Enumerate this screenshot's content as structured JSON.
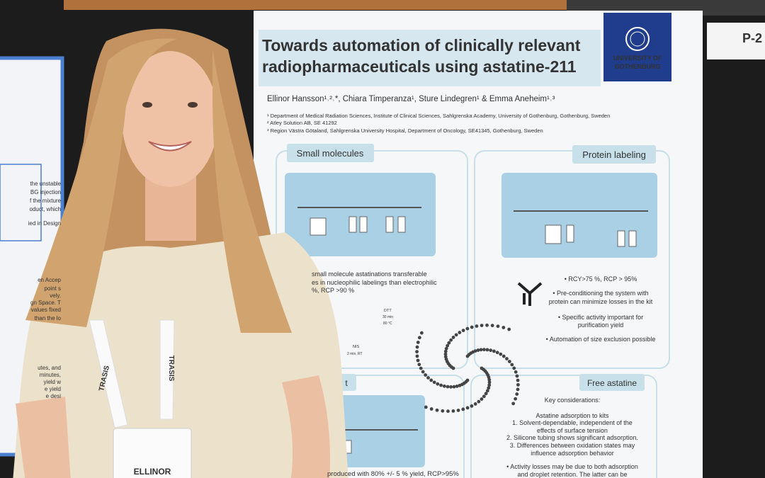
{
  "left_poster": {
    "lines": [
      "the unstable",
      "BG injection",
      "f the mixture",
      "oduct, which",
      "ied in Design",
      "en Accep",
      "point s",
      "vely.",
      "gn Space. T",
      "values fixed",
      "than the lo",
      "utes, and",
      "minutes,",
      "yield w",
      "e yield",
      "e desi"
    ]
  },
  "poster": {
    "title": [
      "Towards automation of clinically relevant",
      "radiopharmaceuticals using astatine-211"
    ],
    "university": [
      "UNIVERSITY OF",
      "GOTHENBURG"
    ],
    "authors": "Ellinor Hansson¹˒²˒*, Chiara Timperanza¹, Sture Lindegren¹ & Emma Aneheim¹˒³",
    "affiliations": [
      "¹ Department of Medical Radiation Sciences, Institute of Clinical Sciences, Sahlgrenska Academy, University of Gothenburg, Gothenburg, Sweden",
      "² Atley Solution AB, SE 41292",
      "³ Region Västra Götaland, Sahlgrenska University Hospital, Department of Oncology, SE41345, Gothenburg, Sweden"
    ],
    "small_molecules": {
      "heading": "Small molecules",
      "text": [
        "small molecule astatinations transferable",
        "es in nucleophilic labelings than electrophilic",
        "%, RCP >90 %"
      ]
    },
    "protein_labeling": {
      "heading": "Protein labeling",
      "bullets": [
        "• RCY>75 %, RCP > 95%",
        "• Pre-conditioning the system with",
        "protein can minimize losses in the kit",
        "• Specific activity important for",
        "purification yield",
        "• Automation of size exclusion possible"
      ]
    },
    "bottom_left": {
      "heading": "t",
      "text": [
        "produced with 80% +/- 5 % yield, RCP>95%"
      ]
    },
    "free_astatine": {
      "heading": "Free astatine",
      "lines": [
        "Key considerations:",
        "Astatine adsorption to kits",
        "1.    Solvent-dependable, independent of the",
        "effects of surface tension",
        "2.   Silicone tubing shows significant adsorption.",
        "3.   Differences between oxidation states may",
        "influence adsorption behavior",
        "• Activity losses may be due to both adsorption",
        "and droplet retention. The latter can be"
      ]
    },
    "scheme_labels": [
      "DTT",
      "30 min",
      "80 °C",
      "NIS",
      "2 min, RT"
    ]
  },
  "badge": {
    "lanyard": [
      "TRASIS",
      "TRASIS"
    ],
    "name": "ELLINOR"
  },
  "sign": {
    "label": "P-2"
  }
}
